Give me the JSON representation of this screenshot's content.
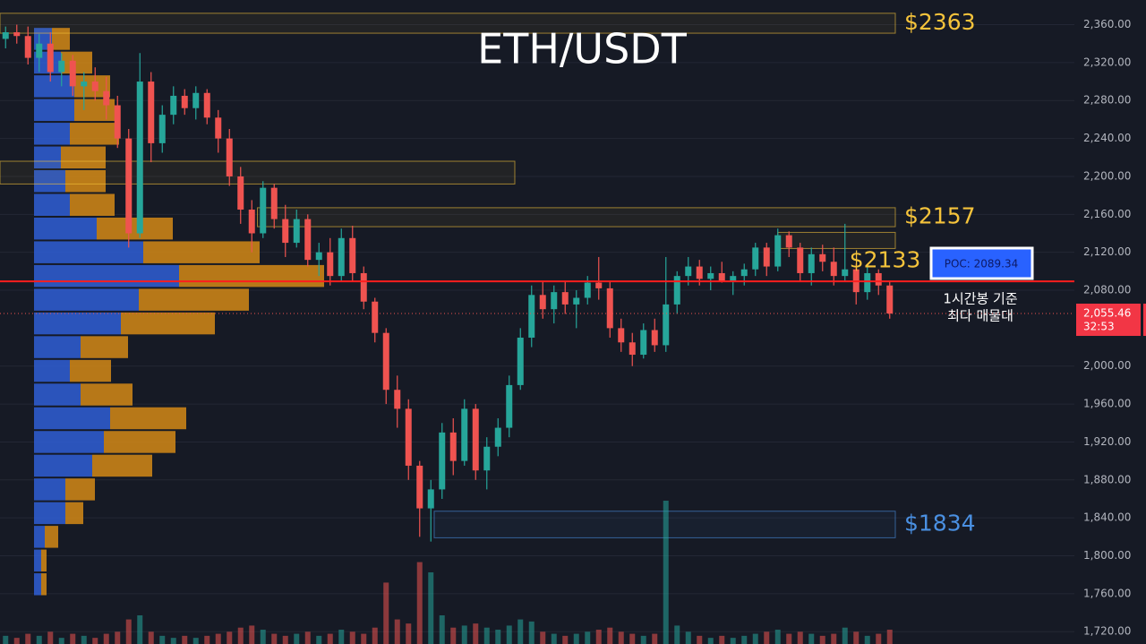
{
  "chart_data": {
    "type": "candlestick",
    "title": "ETH/USDT",
    "ylim": [
      1707,
      2386
    ],
    "xlim": [
      0,
      80
    ],
    "yticks": [
      {
        "value": 2360,
        "label": "2,360.00"
      },
      {
        "value": 2320,
        "label": "2,320.00"
      },
      {
        "value": 2280,
        "label": "2,280.00"
      },
      {
        "value": 2240,
        "label": "2,240.00"
      },
      {
        "value": 2200,
        "label": "2,200.00"
      },
      {
        "value": 2160,
        "label": "2,160.00"
      },
      {
        "value": 2120,
        "label": "2,120.00"
      },
      {
        "value": 2080,
        "label": "2,080.00"
      },
      {
        "value": 2000,
        "label": "2,000.00"
      },
      {
        "value": 1960,
        "label": "1,960.00"
      },
      {
        "value": 1920,
        "label": "1,920.00"
      },
      {
        "value": 1880,
        "label": "1,880.00"
      },
      {
        "value": 1840,
        "label": "1,840.00"
      },
      {
        "value": 1800,
        "label": "1,800.00"
      },
      {
        "value": 1760,
        "label": "1,760.00"
      },
      {
        "value": 1720,
        "label": "1,720.00"
      }
    ],
    "grid": true,
    "up_color": "#26a69a",
    "down_color": "#ef5350",
    "open": [
      2345,
      2352,
      2348,
      2325,
      2340,
      2310,
      2322,
      2295,
      2300,
      2290,
      2275,
      2240,
      2140,
      2300,
      2235,
      2265,
      2285,
      2272,
      2288,
      2262,
      2240,
      2200,
      2165,
      2140,
      2188,
      2155,
      2130,
      2155,
      2112,
      2120,
      2095,
      2135,
      2098,
      2068,
      2035,
      1975,
      1955,
      1895,
      1850,
      1870,
      1930,
      1900,
      1955,
      1890,
      1915,
      1935,
      1980,
      2030,
      2075,
      2060,
      2078,
      2065,
      2072,
      2088,
      2082,
      2040,
      2025,
      2012,
      2038,
      2022,
      2065,
      2095,
      2105,
      2092,
      2098,
      2090,
      2095,
      2102,
      2125,
      2105,
      2138,
      2125,
      2098,
      2118,
      2110,
      2095,
      2102,
      2078,
      2098,
      2085
    ],
    "high": [
      2358,
      2360,
      2358,
      2350,
      2352,
      2330,
      2328,
      2310,
      2315,
      2305,
      2285,
      2250,
      2330,
      2310,
      2275,
      2295,
      2292,
      2295,
      2292,
      2270,
      2250,
      2210,
      2175,
      2195,
      2192,
      2170,
      2165,
      2160,
      2130,
      2135,
      2145,
      2148,
      2105,
      2072,
      2040,
      1990,
      1965,
      1900,
      1880,
      1940,
      1945,
      1965,
      1960,
      1925,
      1945,
      1990,
      2040,
      2085,
      2090,
      2085,
      2090,
      2080,
      2095,
      2115,
      2090,
      2050,
      2035,
      2045,
      2050,
      2115,
      2100,
      2115,
      2112,
      2105,
      2110,
      2100,
      2108,
      2130,
      2130,
      2145,
      2142,
      2130,
      2125,
      2128,
      2125,
      2150,
      2108,
      2105,
      2102,
      2090
    ],
    "low": [
      2335,
      2340,
      2318,
      2310,
      2300,
      2295,
      2285,
      2270,
      2280,
      2260,
      2230,
      2125,
      2135,
      2215,
      2225,
      2255,
      2265,
      2260,
      2255,
      2225,
      2190,
      2150,
      2120,
      2135,
      2145,
      2115,
      2125,
      2105,
      2095,
      2085,
      2090,
      2090,
      2060,
      2025,
      1960,
      1935,
      1880,
      1820,
      1815,
      1860,
      1885,
      1895,
      1880,
      1870,
      1905,
      1925,
      1975,
      2020,
      2050,
      2045,
      2055,
      2040,
      2065,
      2070,
      2030,
      2015,
      2000,
      2008,
      2015,
      2015,
      2055,
      2085,
      2085,
      2080,
      2088,
      2075,
      2085,
      2095,
      2095,
      2100,
      2115,
      2090,
      2085,
      2100,
      2085,
      2090,
      2065,
      2070,
      2075,
      2050
    ],
    "close": [
      2352,
      2348,
      2325,
      2340,
      2310,
      2322,
      2295,
      2300,
      2290,
      2275,
      2240,
      2140,
      2300,
      2235,
      2265,
      2285,
      2272,
      2288,
      2262,
      2240,
      2200,
      2165,
      2140,
      2188,
      2155,
      2130,
      2155,
      2112,
      2120,
      2095,
      2135,
      2098,
      2068,
      2035,
      1975,
      1955,
      1895,
      1850,
      1870,
      1930,
      1900,
      1955,
      1890,
      1915,
      1935,
      1980,
      2030,
      2075,
      2060,
      2078,
      2065,
      2072,
      2088,
      2082,
      2040,
      2025,
      2012,
      2038,
      2022,
      2065,
      2095,
      2105,
      2092,
      2098,
      2090,
      2095,
      2102,
      2125,
      2105,
      2138,
      2125,
      2098,
      2118,
      2110,
      2095,
      2102,
      2078,
      2098,
      2085,
      2055.46
    ],
    "volume": [
      4,
      3,
      5,
      4,
      6,
      3,
      5,
      4,
      3,
      5,
      6,
      12,
      14,
      6,
      4,
      3,
      4,
      3,
      4,
      5,
      6,
      8,
      9,
      7,
      5,
      4,
      5,
      6,
      4,
      5,
      7,
      6,
      5,
      8,
      30,
      12,
      10,
      40,
      35,
      14,
      8,
      9,
      10,
      8,
      7,
      9,
      12,
      11,
      6,
      5,
      4,
      5,
      6,
      7,
      8,
      6,
      5,
      4,
      5,
      70,
      9,
      6,
      4,
      3,
      4,
      3,
      4,
      5,
      6,
      7,
      5,
      6,
      5,
      4,
      5,
      8,
      6,
      4,
      5,
      7
    ],
    "volume_profile": {
      "prices": [
        2345,
        2320,
        2295,
        2270,
        2245,
        2220,
        2195,
        2170,
        2145,
        2120,
        2095,
        2070,
        2045,
        2020,
        1995,
        1970,
        1945,
        1920,
        1895,
        1870,
        1845,
        1820,
        1795,
        1770
      ],
      "buy": [
        20,
        30,
        45,
        45,
        40,
        30,
        35,
        40,
        70,
        122,
        162,
        117,
        97,
        52,
        40,
        52,
        85,
        78,
        65,
        35,
        35,
        12,
        8,
        8
      ],
      "sell": [
        20,
        35,
        40,
        45,
        55,
        50,
        45,
        50,
        85,
        130,
        162,
        123,
        105,
        53,
        46,
        58,
        85,
        80,
        67,
        33,
        20,
        15,
        6,
        6
      ],
      "buy_color": "#2f5fd6",
      "sell_color": "#d48a16"
    },
    "zones": [
      {
        "top": 2372,
        "bottom": 2351,
        "from": 0,
        "to": 80,
        "label": "$2363",
        "color": "#f5c33b"
      },
      {
        "top": 2216,
        "bottom": 2192,
        "from": 0,
        "to": 46,
        "color": "#f5c33b"
      },
      {
        "top": 2167,
        "bottom": 2147,
        "from": 23,
        "to": 80,
        "label": "$2157",
        "color": "#f5c33b"
      },
      {
        "top": 2141,
        "bottom": 2124,
        "from": 69.5,
        "to": 80,
        "label": "$2133",
        "color": "#f5c33b"
      },
      {
        "top": 1847,
        "bottom": 1819,
        "from": 38.8,
        "to": 80,
        "label": "$1834",
        "color": "#4a90e2"
      }
    ],
    "poc": {
      "value": 2089.34,
      "label": "POC: 2089.34"
    },
    "annotation": [
      "1시간봉 기준",
      "최다 매물대"
    ],
    "last_price": {
      "value": 2055.46,
      "label": "2,055.46",
      "timer": "32:53"
    }
  }
}
